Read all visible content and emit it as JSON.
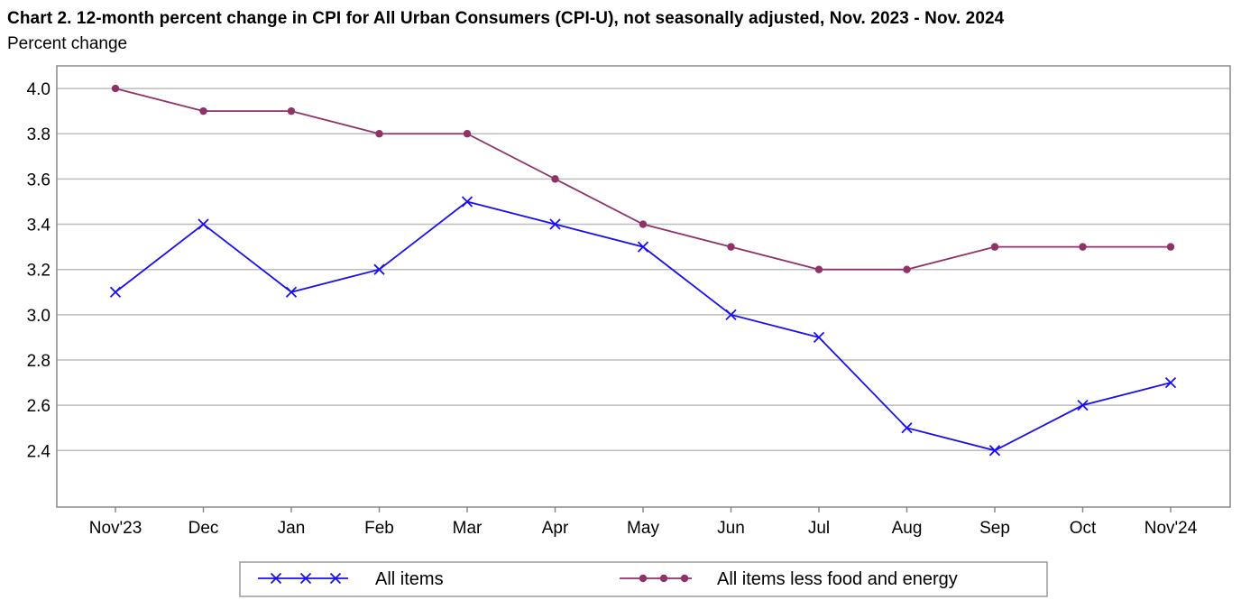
{
  "chart_data": {
    "type": "line",
    "title": "Chart 2. 12-month percent change in CPI for All Urban Consumers (CPI-U), not seasonally adjusted, Nov. 2023 - Nov. 2024",
    "subtitle": "Percent change",
    "xlabel": "",
    "ylabel": "",
    "categories": [
      "Nov'23",
      "Dec",
      "Jan",
      "Feb",
      "Mar",
      "Apr",
      "May",
      "Jun",
      "Jul",
      "Aug",
      "Sep",
      "Oct",
      "Nov'24"
    ],
    "y_ticks": [
      "4.0",
      "3.8",
      "3.6",
      "3.4",
      "3.2",
      "3.0",
      "2.8",
      "2.6",
      "2.4"
    ],
    "ylim": [
      2.15,
      4.1
    ],
    "grid": true,
    "legend_position": "bottom",
    "series": [
      {
        "name": "All items",
        "color": "#1a0ff0",
        "marker": "x",
        "values": [
          3.1,
          3.4,
          3.1,
          3.2,
          3.5,
          3.4,
          3.3,
          3.0,
          2.9,
          2.5,
          2.4,
          2.6,
          2.7
        ]
      },
      {
        "name": "All items less food and energy",
        "color": "#8e3268",
        "marker": "circle",
        "values": [
          4.0,
          3.9,
          3.9,
          3.8,
          3.8,
          3.6,
          3.4,
          3.3,
          3.2,
          3.2,
          3.3,
          3.3,
          3.3
        ]
      }
    ]
  }
}
